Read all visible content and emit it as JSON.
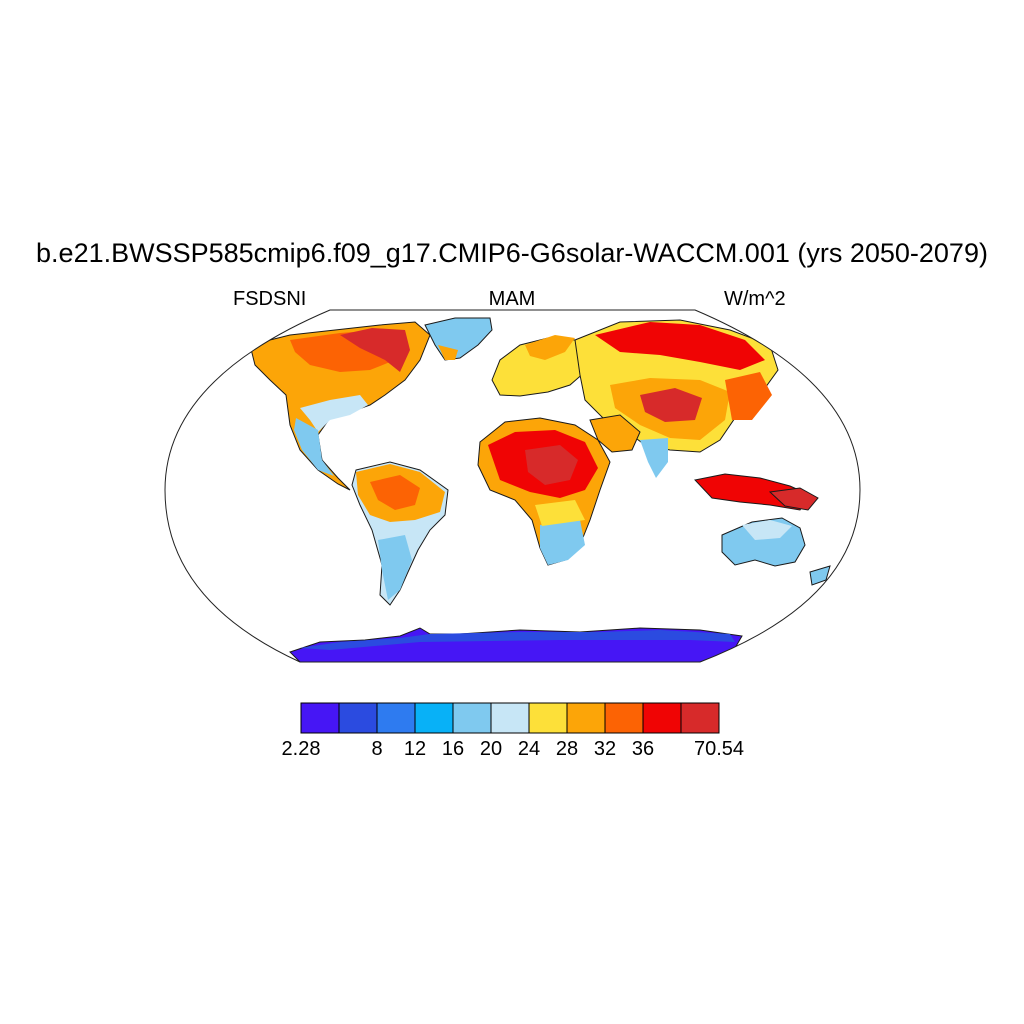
{
  "title": "b.e21.BWSSP585cmip6.f09_g17.CMIP6-G6solar-WACCM.001 (yrs 2050-2079)",
  "left_label": "FSDSNI",
  "center_label": "MAM",
  "right_label": "W/m^2",
  "colorbar": {
    "colors": [
      "#4616f5",
      "#2b4be0",
      "#2e7bf0",
      "#08b1f7",
      "#7fc9ef",
      "#c7e6f6",
      "#fde039",
      "#fca508",
      "#fc6304",
      "#f00404",
      "#d72a2a"
    ],
    "boundaries": [
      2.28,
      4,
      8,
      12,
      16,
      20,
      24,
      28,
      32,
      36,
      40,
      70.54
    ],
    "tick_labels": [
      {
        "text": "2.28",
        "value": 2.28
      },
      {
        "text": "8",
        "value": 8
      },
      {
        "text": "12",
        "value": 12
      },
      {
        "text": "16",
        "value": 16
      },
      {
        "text": "20",
        "value": 20
      },
      {
        "text": "24",
        "value": 24
      },
      {
        "text": "28",
        "value": 28
      },
      {
        "text": "32",
        "value": 32
      },
      {
        "text": "36",
        "value": 36
      },
      {
        "text": "70.54",
        "value": 70.54
      }
    ]
  }
}
